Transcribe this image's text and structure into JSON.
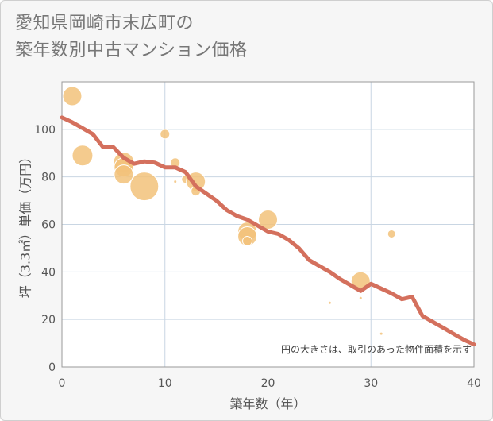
{
  "chart_data": {
    "type": "scatter",
    "title_lines": [
      "愛知県岡崎市末広町の",
      "築年数別中古マンション価格"
    ],
    "xlabel": "築年数（年）",
    "ylabel": "坪（3.3㎡）単価（万円）",
    "xlim": [
      0,
      40
    ],
    "ylim": [
      0,
      120
    ],
    "x_ticks": [
      "0",
      "10",
      "20",
      "30",
      "40"
    ],
    "y_ticks": [
      "0",
      "20",
      "40",
      "60",
      "80",
      "100"
    ],
    "grid": true,
    "note": "円の大きさは、取引のあった物件面積を示す",
    "colors": {
      "bubble": "#f2c27a",
      "trend": "#d4705d"
    },
    "bubbles": [
      {
        "x": 1,
        "y": 114,
        "size": 12
      },
      {
        "x": 2,
        "y": 89,
        "size": 13
      },
      {
        "x": 6,
        "y": 86,
        "size": 13
      },
      {
        "x": 6,
        "y": 84,
        "size": 12
      },
      {
        "x": 6,
        "y": 81,
        "size": 12
      },
      {
        "x": 8,
        "y": 76,
        "size": 18
      },
      {
        "x": 10,
        "y": 98,
        "size": 6
      },
      {
        "x": 11,
        "y": 86,
        "size": 6
      },
      {
        "x": 11,
        "y": 78,
        "size": 2
      },
      {
        "x": 12,
        "y": 79,
        "size": 5
      },
      {
        "x": 13,
        "y": 78,
        "size": 12
      },
      {
        "x": 13,
        "y": 74,
        "size": 6
      },
      {
        "x": 18,
        "y": 57,
        "size": 12
      },
      {
        "x": 18,
        "y": 55,
        "size": 12
      },
      {
        "x": 18,
        "y": 53,
        "size": 6
      },
      {
        "x": 20,
        "y": 62,
        "size": 12
      },
      {
        "x": 26,
        "y": 27,
        "size": 2
      },
      {
        "x": 29,
        "y": 36,
        "size": 12
      },
      {
        "x": 29,
        "y": 29,
        "size": 2
      },
      {
        "x": 31,
        "y": 14,
        "size": 2
      },
      {
        "x": 32,
        "y": 56,
        "size": 5
      }
    ],
    "trend": {
      "x": [
        0,
        1,
        2,
        3,
        4,
        5,
        6,
        7,
        8,
        9,
        10,
        11,
        12,
        13,
        14,
        15,
        16,
        17,
        18,
        19,
        20,
        21,
        22,
        23,
        24,
        25,
        26,
        27,
        28,
        29,
        30,
        31,
        32,
        33,
        34,
        35,
        36,
        37,
        38,
        39,
        40
      ],
      "y": [
        105,
        103,
        100.5,
        98,
        92.5,
        92.5,
        88,
        85.5,
        86.5,
        86,
        84,
        84,
        82,
        76,
        73,
        70,
        66,
        63.5,
        62,
        59.5,
        57,
        56,
        53.5,
        50,
        45,
        42.5,
        40,
        37,
        34.5,
        32,
        35,
        33,
        31,
        28.5,
        29.5,
        21.5,
        19,
        16.5,
        14,
        11.5,
        9.5
      ]
    }
  }
}
